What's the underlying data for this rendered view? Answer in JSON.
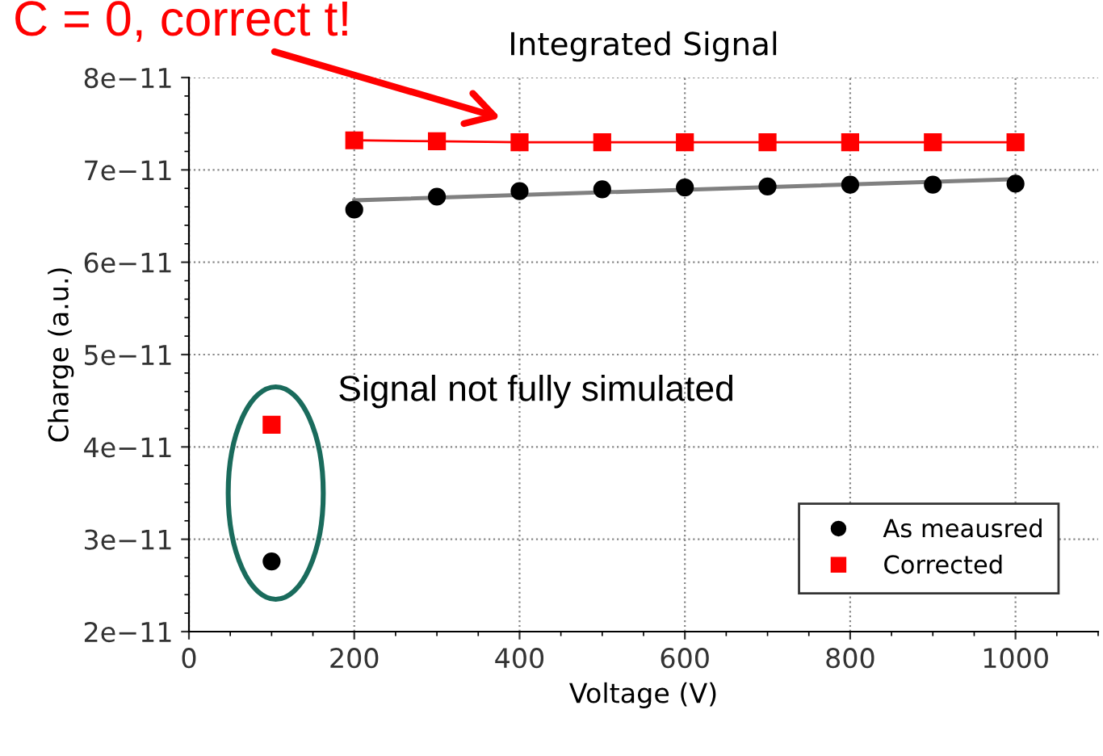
{
  "chart_data": {
    "type": "scatter",
    "title": "Integrated Signal",
    "xlabel": "Voltage (V)",
    "ylabel": "Charge (a.u.)",
    "x": [
      200,
      300,
      400,
      500,
      600,
      700,
      800,
      900,
      1000
    ],
    "series": [
      {
        "name": "As meausred",
        "color": "#000000",
        "marker": "circle",
        "values": [
          6.57e-11,
          6.71e-11,
          6.77e-11,
          6.79e-11,
          6.81e-11,
          6.82e-11,
          6.84e-11,
          6.84e-11,
          6.85e-11
        ]
      },
      {
        "name": "Corrected",
        "color": "#ff0000",
        "marker": "square",
        "type": "line",
        "values": [
          7.32e-11,
          7.31e-11,
          7.3e-11,
          7.3e-11,
          7.3e-11,
          7.3e-11,
          7.3e-11,
          7.3e-11,
          7.3e-11
        ]
      },
      {
        "color": "#000000",
        "marker": "circle",
        "x": [
          100
        ],
        "values": [
          2.76e-11
        ]
      },
      {
        "color": "#ff0000",
        "marker": "square",
        "x": [
          100
        ],
        "values": [
          4.24e-11
        ]
      },
      {
        "color": "#808080",
        "type": "line",
        "marker": "none",
        "x": [
          200,
          1000
        ],
        "values": [
          6.67e-11,
          6.9e-11
        ]
      }
    ],
    "xlim": [
      0,
      1100
    ],
    "xticks": [
      0,
      200,
      400,
      600,
      800,
      1000
    ],
    "ylim": [
      2e-11,
      8e-11
    ],
    "yticks": [
      {
        "value": 2e-11,
        "label": "2e−11"
      },
      {
        "value": 3e-11,
        "label": "3e−11"
      },
      {
        "value": 4e-11,
        "label": "4e−11"
      },
      {
        "value": 5e-11,
        "label": "5e−11"
      },
      {
        "value": 6e-11,
        "label": "6e−11"
      },
      {
        "value": 7e-11,
        "label": "7e−11"
      },
      {
        "value": 8e-11,
        "label": "8e−11"
      }
    ],
    "grid": true,
    "legend": "right",
    "annotations": [
      "C = 0, correct t!",
      "Signal not fully simulated"
    ]
  }
}
